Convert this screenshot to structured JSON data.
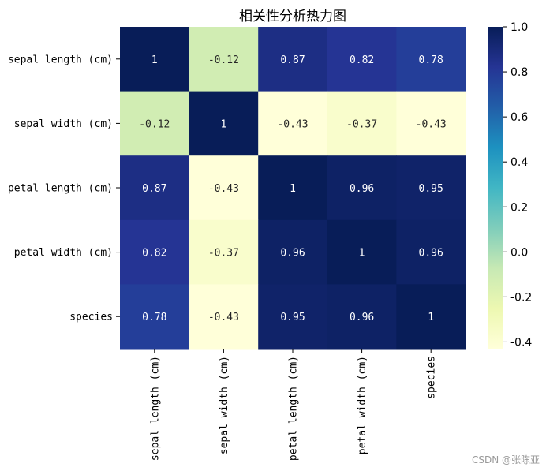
{
  "chart_data": {
    "type": "heatmap",
    "title": "相关性分析热力图",
    "row_labels": [
      "sepal length (cm)",
      "sepal width (cm)",
      "petal length (cm)",
      "petal width (cm)",
      "species"
    ],
    "col_labels": [
      "sepal length (cm)",
      "sepal width (cm)",
      "petal length (cm)",
      "petal width (cm)",
      "species"
    ],
    "values": [
      [
        1,
        -0.12,
        0.87,
        0.82,
        0.78
      ],
      [
        -0.12,
        1,
        -0.43,
        -0.37,
        -0.43
      ],
      [
        0.87,
        -0.43,
        1,
        0.96,
        0.95
      ],
      [
        0.82,
        -0.37,
        0.96,
        1,
        0.96
      ],
      [
        0.78,
        -0.43,
        0.95,
        0.96,
        1
      ]
    ],
    "cell_labels": [
      [
        "1",
        "-0.12",
        "0.87",
        "0.82",
        "0.78"
      ],
      [
        "-0.12",
        "1",
        "-0.43",
        "-0.37",
        "-0.43"
      ],
      [
        "0.87",
        "-0.43",
        "1",
        "0.96",
        "0.95"
      ],
      [
        "0.82",
        "-0.37",
        "0.96",
        "1",
        "0.96"
      ],
      [
        "0.78",
        "-0.43",
        "0.95",
        "0.96",
        "1"
      ]
    ],
    "colormap": "YlGnBu",
    "colormap_stops": [
      "#ffffd9",
      "#edf8b1",
      "#c7e9b4",
      "#7fcdbb",
      "#41b6c4",
      "#1d91c0",
      "#225ea8",
      "#253494",
      "#081d58"
    ],
    "vmin": -0.43,
    "vmax": 1.0,
    "colorbar": {
      "ticks": [
        1.0,
        0.8,
        0.6,
        0.4,
        0.2,
        0.0,
        -0.2,
        -0.4
      ],
      "tick_labels": [
        "1.0",
        "0.8",
        "0.6",
        "0.4",
        "0.2",
        "0.0",
        "-0.2",
        "-0.4"
      ]
    },
    "annotation_colors": {
      "on_dark": "#ffffff",
      "on_light": "#262626"
    }
  },
  "watermark": "CSDN @张陈亚"
}
